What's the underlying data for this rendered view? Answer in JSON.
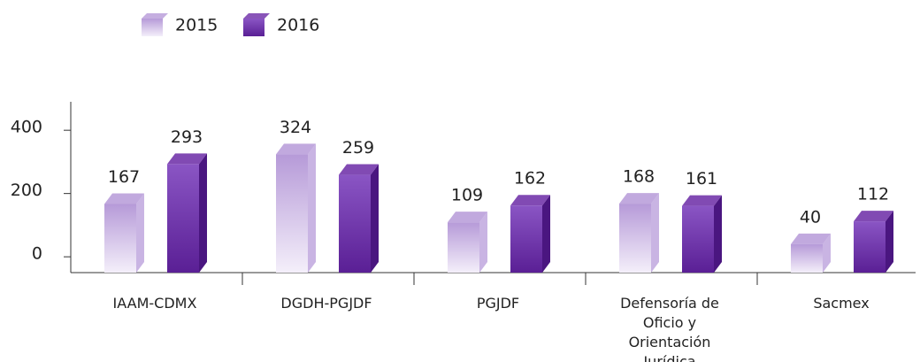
{
  "chart_data": {
    "type": "bar3d",
    "categories": [
      "IAAM-CDMX",
      "DGDH-PGJDF",
      "PGJDF",
      "Defensoría de Oficio y Orientación Jurídica",
      "Sacmex"
    ],
    "series": [
      {
        "name": "2015",
        "color": "#b69ad8",
        "values": [
          167,
          324,
          109,
          168,
          40
        ]
      },
      {
        "name": "2016",
        "color": "#6b2aa6",
        "values": [
          293,
          259,
          162,
          161,
          112
        ]
      }
    ],
    "ylim": [
      -50,
      490
    ],
    "yticks": [
      0,
      200,
      400
    ],
    "legend": "top-left"
  }
}
